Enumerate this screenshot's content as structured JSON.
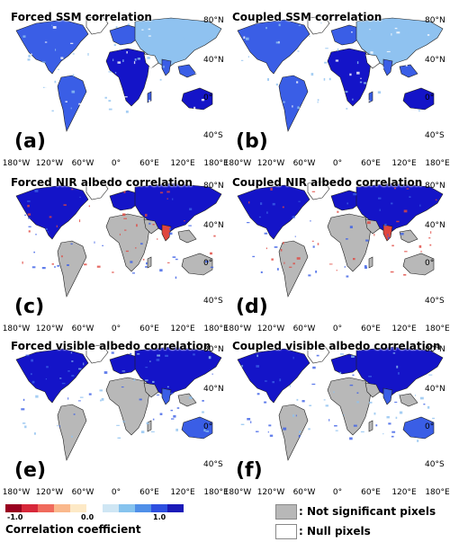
{
  "panels": [
    {
      "title": "Forced SSM correlation",
      "label": "(a)",
      "style": "ssm"
    },
    {
      "title": "Coupled SSM correlation",
      "label": "(b)",
      "style": "ssm"
    },
    {
      "title": "Forced NIR albedo correlation",
      "label": "(c)",
      "style": "nir"
    },
    {
      "title": "Coupled NIR albedo correlation",
      "label": "(d)",
      "style": "nir"
    },
    {
      "title": "Forced visible albedo correlation",
      "label": "(e)",
      "style": "vis"
    },
    {
      "title": "Coupled visible albedo correlation",
      "label": "(f)",
      "style": "vis"
    }
  ],
  "lat_labels": [
    "80°N",
    "40°N",
    "0°",
    "40°S"
  ],
  "lon_labels": [
    "180°W",
    "120°W",
    "60°W",
    "0°",
    "60°E",
    "120°E",
    "180°E"
  ],
  "colorbar": {
    "title": "Correlation coefficient",
    "min_label": "-1.0",
    "mid_label": "0.0",
    "max_label": "1.0",
    "colors": [
      "#99001f",
      "#d7283a",
      "#f06a5c",
      "#fab88c",
      "#fde9c6",
      "#ffffff",
      "#cfe6f4",
      "#86c3ee",
      "#4f8fe8",
      "#2d4fe0",
      "#1a1ab8"
    ]
  },
  "key": {
    "not_significant": ": Not significant pixels",
    "null": ": Null pixels",
    "gray_color": "#b8b8b8"
  },
  "colors": {
    "deep_blue": "#1414c8",
    "blue": "#3a5ee6",
    "light_blue": "#8fc2f0",
    "gray": "#b8b8b8",
    "red": "#e0463e",
    "coast": "#1e1e1e"
  }
}
